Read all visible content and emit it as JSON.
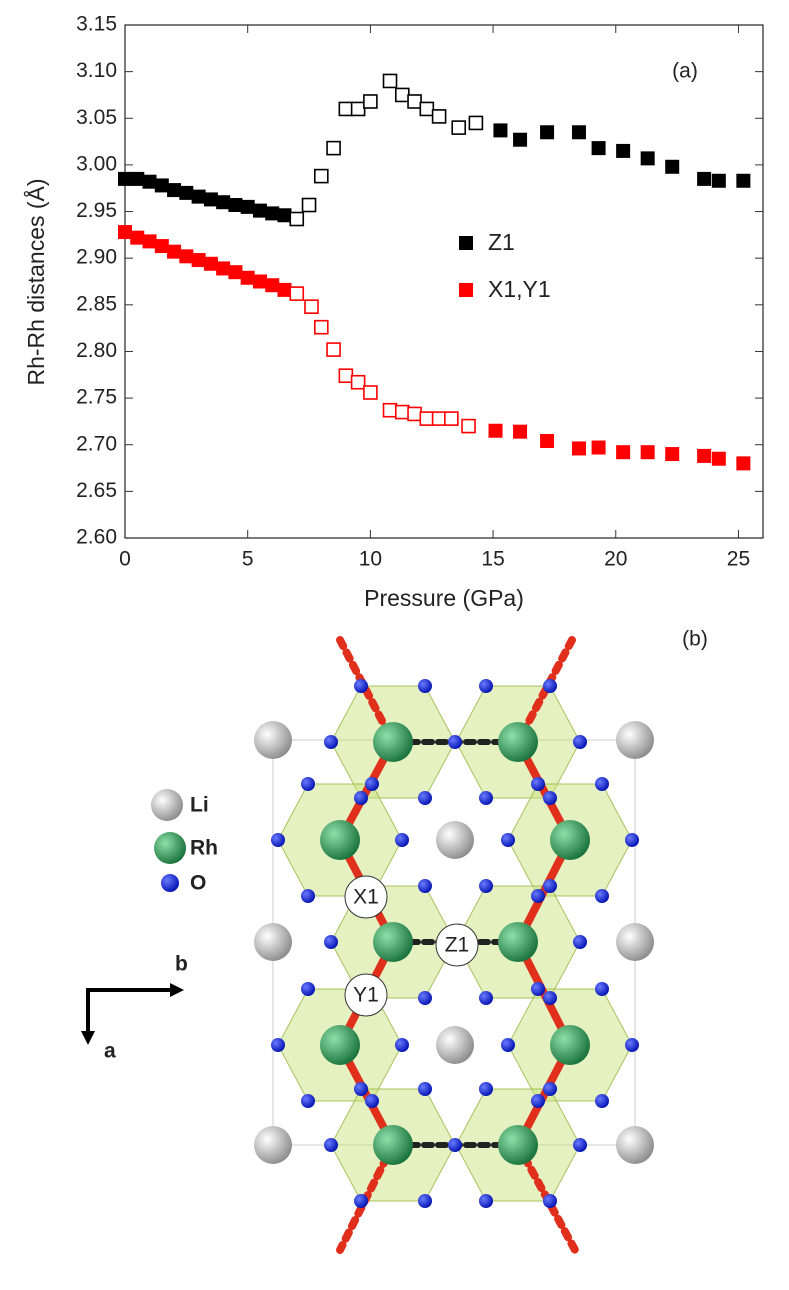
{
  "chart_data": {
    "type": "scatter",
    "panel_label": "(a)",
    "xlabel": "Pressure (GPa)",
    "ylabel": "Rh-Rh distances (Å)",
    "xlim": [
      0,
      26
    ],
    "xticks": [
      0,
      5,
      10,
      15,
      20,
      25
    ],
    "ylim": [
      2.6,
      3.15
    ],
    "yticks": [
      {
        "value": 2.6,
        "label": "2.60"
      },
      2.65,
      {
        "value": 2.7,
        "label": "2.70"
      },
      2.75,
      {
        "value": 2.8,
        "label": "2.80"
      },
      2.85,
      {
        "value": 2.9,
        "label": "2.90"
      },
      2.95,
      {
        "value": 3.0,
        "label": "3.00"
      },
      3.05,
      {
        "value": 3.1,
        "label": "3.10"
      },
      3.15
    ],
    "legend": "center",
    "series": [
      {
        "name": "Z1",
        "color": "#000000",
        "x": [
          0,
          0.5,
          1,
          1.5,
          2,
          2.5,
          3,
          3.5,
          4,
          4.5,
          5,
          5.5,
          6,
          6.5,
          7.0,
          7.5,
          8.0,
          8.5,
          9.0,
          9.5,
          10.0,
          10.8,
          11.3,
          11.8,
          12.3,
          12.8,
          13.6,
          14.3,
          15.3,
          16.1,
          17.2,
          18.5,
          19.3,
          20.3,
          21.3,
          22.3,
          23.6,
          24.2,
          25.2
        ],
        "values": [
          2.985,
          2.985,
          2.982,
          2.978,
          2.973,
          2.97,
          2.966,
          2.963,
          2.96,
          2.957,
          2.955,
          2.951,
          2.948,
          2.946,
          2.942,
          2.957,
          2.988,
          3.018,
          3.06,
          3.06,
          3.068,
          3.09,
          3.075,
          3.068,
          3.06,
          3.052,
          3.04,
          3.045,
          3.037,
          3.027,
          3.035,
          3.035,
          3.018,
          3.015,
          3.007,
          2.998,
          2.985,
          2.983,
          2.983
        ],
        "markers": [
          "filled",
          "filled",
          "filled",
          "filled",
          "filled",
          "filled",
          "filled",
          "filled",
          "filled",
          "filled",
          "filled",
          "filled",
          "filled",
          "filled",
          "open",
          "open",
          "open",
          "open",
          "open",
          "open",
          "open",
          "open",
          "open",
          "open",
          "open",
          "open",
          "open",
          "open",
          "filled",
          "filled",
          "filled",
          "filled",
          "filled",
          "filled",
          "filled",
          "filled",
          "filled",
          "filled",
          "filled"
        ]
      },
      {
        "name": "X1,Y1",
        "color": "#ff0000",
        "x": [
          0,
          0.5,
          1,
          1.5,
          2,
          2.5,
          3,
          3.5,
          4,
          4.5,
          5,
          5.5,
          6,
          6.5,
          7.0,
          7.6,
          8.0,
          8.5,
          9.0,
          9.5,
          10.0,
          10.8,
          11.3,
          11.8,
          12.3,
          12.8,
          13.3,
          14.0,
          15.1,
          16.1,
          17.2,
          18.5,
          19.3,
          20.3,
          21.3,
          22.3,
          23.6,
          24.2,
          25.2
        ],
        "values": [
          2.928,
          2.922,
          2.918,
          2.913,
          2.907,
          2.902,
          2.898,
          2.894,
          2.889,
          2.885,
          2.879,
          2.875,
          2.871,
          2.866,
          2.862,
          2.848,
          2.826,
          2.802,
          2.774,
          2.767,
          2.756,
          2.737,
          2.735,
          2.733,
          2.728,
          2.728,
          2.728,
          2.72,
          2.715,
          2.714,
          2.704,
          2.696,
          2.697,
          2.692,
          2.692,
          2.69,
          2.688,
          2.685,
          2.68
        ],
        "markers": [
          "filled",
          "filled",
          "filled",
          "filled",
          "filled",
          "filled",
          "filled",
          "filled",
          "filled",
          "filled",
          "filled",
          "filled",
          "filled",
          "filled",
          "open",
          "open",
          "open",
          "open",
          "open",
          "open",
          "open",
          "open",
          "open",
          "open",
          "open",
          "open",
          "open",
          "open",
          "filled",
          "filled",
          "filled",
          "filled",
          "filled",
          "filled",
          "filled",
          "filled",
          "filled",
          "filled",
          "filled"
        ]
      }
    ]
  },
  "structure": {
    "panel_label": "(b)",
    "atoms": [
      "Li",
      "Rh",
      "O"
    ],
    "bonds": [
      "X1",
      "Z1",
      "Y1"
    ],
    "axes": [
      "b",
      "a"
    ]
  }
}
